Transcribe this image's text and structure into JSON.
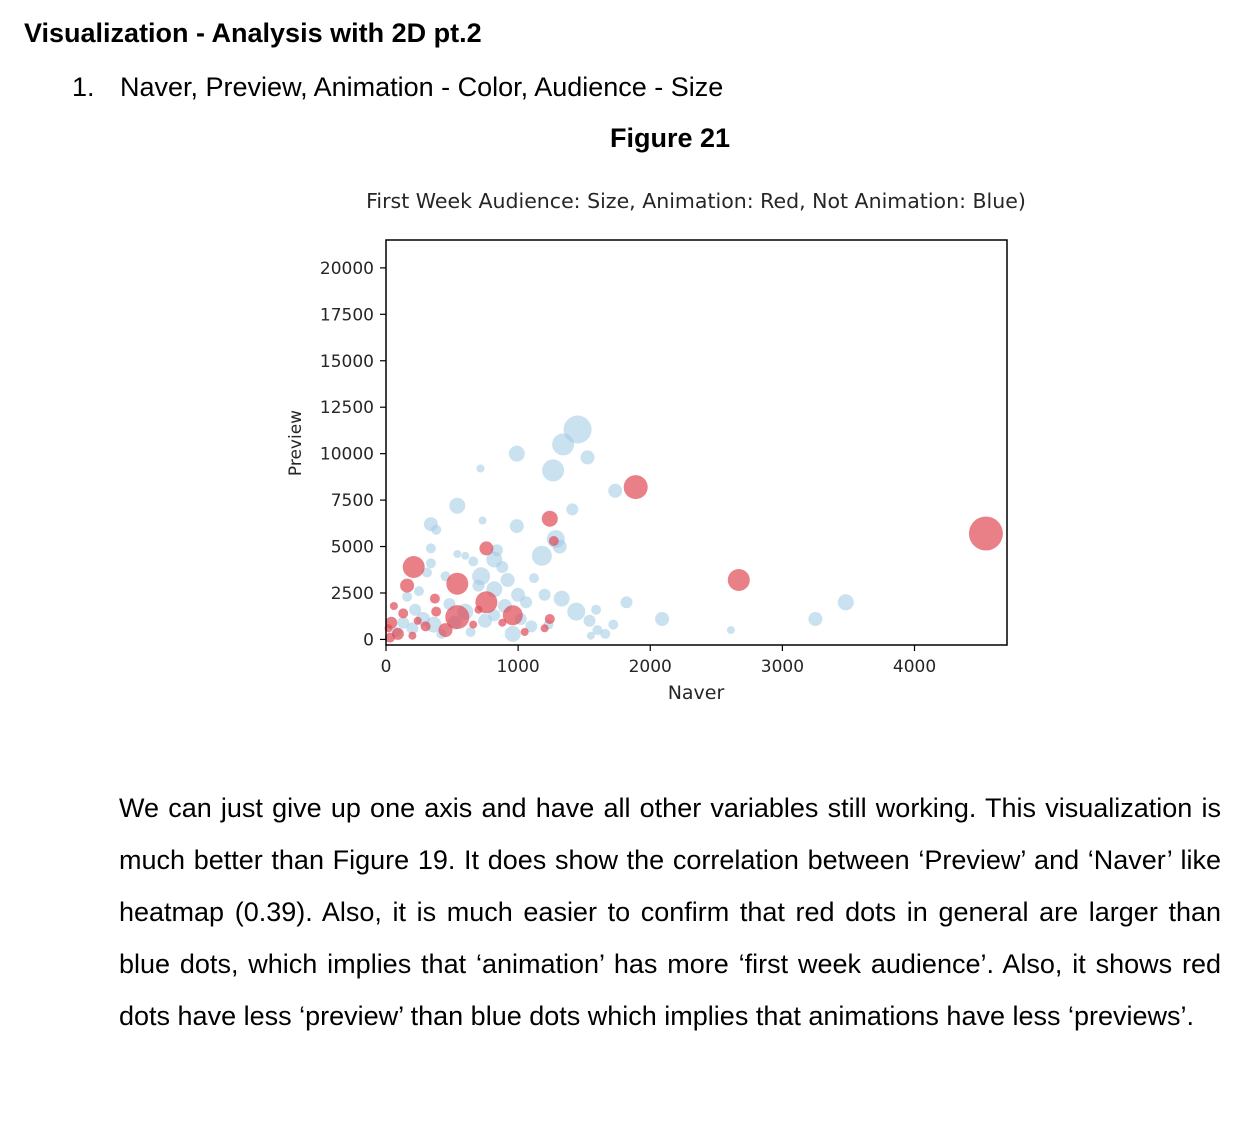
{
  "section": {
    "title": "Visualization - Analysis with 2D pt.2"
  },
  "list": {
    "number": "1.",
    "text": "Naver, Preview, Animation - Color, Audience - Size"
  },
  "figure": {
    "caption": "Figure 21"
  },
  "chart_data": {
    "type": "scatter",
    "title": "First Week Audience: Size, Animation: Red, Not Animation: Blue)",
    "xlabel": "Naver",
    "ylabel": "Preview",
    "xlim": [
      0,
      4700
    ],
    "ylim": [
      -300,
      21500
    ],
    "x_ticks": [
      "0",
      "1000",
      "2000",
      "3000",
      "4000"
    ],
    "x_tick_values": [
      0,
      1000,
      2000,
      3000,
      4000
    ],
    "y_ticks": [
      "0",
      "2500",
      "5000",
      "7500",
      "10000",
      "12500",
      "15000",
      "17500",
      "20000"
    ],
    "y_tick_values": [
      0,
      2500,
      5000,
      7500,
      10000,
      12500,
      15000,
      17500,
      20000
    ],
    "grid": false,
    "legend": "none",
    "colors": {
      "animation": "#e04a55",
      "not_animation": "#9ec8e3"
    },
    "series": [
      {
        "color": "#9ec8e3",
        "points": [
          {
            "x": 1450,
            "y": 11300,
            "s": 14
          },
          {
            "x": 1340,
            "y": 10500,
            "s": 11
          },
          {
            "x": 1265,
            "y": 9100,
            "s": 11
          },
          {
            "x": 990,
            "y": 10000,
            "s": 8
          },
          {
            "x": 1525,
            "y": 9800,
            "s": 7
          },
          {
            "x": 715,
            "y": 9200,
            "s": 4
          },
          {
            "x": 1735,
            "y": 8000,
            "s": 7
          },
          {
            "x": 540,
            "y": 7200,
            "s": 8
          },
          {
            "x": 1410,
            "y": 7000,
            "s": 6
          },
          {
            "x": 730,
            "y": 6400,
            "s": 4
          },
          {
            "x": 990,
            "y": 6100,
            "s": 7
          },
          {
            "x": 340,
            "y": 6200,
            "s": 7
          },
          {
            "x": 380,
            "y": 5900,
            "s": 5
          },
          {
            "x": 1285,
            "y": 5400,
            "s": 9
          },
          {
            "x": 1315,
            "y": 5000,
            "s": 7
          },
          {
            "x": 1180,
            "y": 4500,
            "s": 10
          },
          {
            "x": 340,
            "y": 4900,
            "s": 5
          },
          {
            "x": 540,
            "y": 4600,
            "s": 4
          },
          {
            "x": 600,
            "y": 4500,
            "s": 4
          },
          {
            "x": 840,
            "y": 4800,
            "s": 6
          },
          {
            "x": 820,
            "y": 4300,
            "s": 8
          },
          {
            "x": 660,
            "y": 4200,
            "s": 5
          },
          {
            "x": 880,
            "y": 3900,
            "s": 6
          },
          {
            "x": 340,
            "y": 4100,
            "s": 5
          },
          {
            "x": 310,
            "y": 3600,
            "s": 5
          },
          {
            "x": 450,
            "y": 3400,
            "s": 5
          },
          {
            "x": 720,
            "y": 3400,
            "s": 9
          },
          {
            "x": 920,
            "y": 3200,
            "s": 7
          },
          {
            "x": 1120,
            "y": 3300,
            "s": 5
          },
          {
            "x": 700,
            "y": 2900,
            "s": 6
          },
          {
            "x": 820,
            "y": 2700,
            "s": 8
          },
          {
            "x": 1000,
            "y": 2400,
            "s": 7
          },
          {
            "x": 1200,
            "y": 2400,
            "s": 6
          },
          {
            "x": 1330,
            "y": 2200,
            "s": 8
          },
          {
            "x": 1060,
            "y": 2000,
            "s": 6
          },
          {
            "x": 900,
            "y": 1800,
            "s": 7
          },
          {
            "x": 1440,
            "y": 1500,
            "s": 9
          },
          {
            "x": 1590,
            "y": 1600,
            "s": 5
          },
          {
            "x": 1720,
            "y": 800,
            "s": 5
          },
          {
            "x": 1820,
            "y": 2000,
            "s": 6
          },
          {
            "x": 2090,
            "y": 1100,
            "s": 7
          },
          {
            "x": 2610,
            "y": 500,
            "s": 4
          },
          {
            "x": 3250,
            "y": 1100,
            "s": 7
          },
          {
            "x": 3480,
            "y": 2000,
            "s": 8
          },
          {
            "x": 1600,
            "y": 500,
            "s": 5
          },
          {
            "x": 1540,
            "y": 1000,
            "s": 6
          },
          {
            "x": 1100,
            "y": 700,
            "s": 6
          },
          {
            "x": 1230,
            "y": 800,
            "s": 5
          },
          {
            "x": 1660,
            "y": 300,
            "s": 5
          },
          {
            "x": 1550,
            "y": 200,
            "s": 4
          },
          {
            "x": 960,
            "y": 300,
            "s": 8
          },
          {
            "x": 750,
            "y": 1000,
            "s": 7
          },
          {
            "x": 600,
            "y": 1500,
            "s": 8
          },
          {
            "x": 480,
            "y": 1900,
            "s": 6
          },
          {
            "x": 520,
            "y": 900,
            "s": 7
          },
          {
            "x": 360,
            "y": 800,
            "s": 8
          },
          {
            "x": 280,
            "y": 1100,
            "s": 7
          },
          {
            "x": 220,
            "y": 1600,
            "s": 6
          },
          {
            "x": 160,
            "y": 2300,
            "s": 5
          },
          {
            "x": 250,
            "y": 2600,
            "s": 5
          },
          {
            "x": 200,
            "y": 600,
            "s": 6
          },
          {
            "x": 130,
            "y": 900,
            "s": 6
          },
          {
            "x": 80,
            "y": 400,
            "s": 5
          },
          {
            "x": 420,
            "y": 300,
            "s": 5
          },
          {
            "x": 640,
            "y": 400,
            "s": 5
          },
          {
            "x": 820,
            "y": 1300,
            "s": 6
          },
          {
            "x": 1020,
            "y": 1100,
            "s": 6
          }
        ]
      },
      {
        "color": "#e04a55",
        "points": [
          {
            "x": 4540,
            "y": 5700,
            "s": 17
          },
          {
            "x": 1890,
            "y": 8200,
            "s": 12
          },
          {
            "x": 2670,
            "y": 3200,
            "s": 11
          },
          {
            "x": 1240,
            "y": 6500,
            "s": 8
          },
          {
            "x": 1270,
            "y": 5300,
            "s": 5
          },
          {
            "x": 210,
            "y": 3900,
            "s": 11
          },
          {
            "x": 160,
            "y": 2900,
            "s": 7
          },
          {
            "x": 540,
            "y": 3000,
            "s": 11
          },
          {
            "x": 760,
            "y": 2000,
            "s": 11
          },
          {
            "x": 760,
            "y": 4900,
            "s": 7
          },
          {
            "x": 540,
            "y": 1200,
            "s": 12
          },
          {
            "x": 960,
            "y": 1300,
            "s": 10
          },
          {
            "x": 1240,
            "y": 1100,
            "s": 5
          },
          {
            "x": 1200,
            "y": 600,
            "s": 4
          },
          {
            "x": 370,
            "y": 2200,
            "s": 5
          },
          {
            "x": 450,
            "y": 500,
            "s": 7
          },
          {
            "x": 300,
            "y": 700,
            "s": 5
          },
          {
            "x": 130,
            "y": 1400,
            "s": 5
          },
          {
            "x": 60,
            "y": 1800,
            "s": 4
          },
          {
            "x": 40,
            "y": 900,
            "s": 6
          },
          {
            "x": 90,
            "y": 300,
            "s": 6
          },
          {
            "x": 30,
            "y": 100,
            "s": 5
          },
          {
            "x": 200,
            "y": 200,
            "s": 4
          },
          {
            "x": 240,
            "y": 1000,
            "s": 4
          },
          {
            "x": 20,
            "y": 600,
            "s": 4
          },
          {
            "x": 380,
            "y": 1500,
            "s": 5
          },
          {
            "x": 700,
            "y": 1600,
            "s": 4
          },
          {
            "x": 660,
            "y": 800,
            "s": 4
          },
          {
            "x": 880,
            "y": 900,
            "s": 4
          },
          {
            "x": 1050,
            "y": 400,
            "s": 4
          }
        ]
      }
    ]
  },
  "body": {
    "paragraph": "We can just give up one axis and have all other variables still working. This visualization is much better than Figure 19. It does show the correlation between ‘Preview’ and ‘Naver’ like heatmap (0.39). Also, it is much easier to confirm that red dots in general are larger than blue dots, which implies that ‘animation’ has more ‘first week audience’. Also, it shows red dots have less ‘preview’ than blue dots which implies that animations have less ‘previews’."
  }
}
